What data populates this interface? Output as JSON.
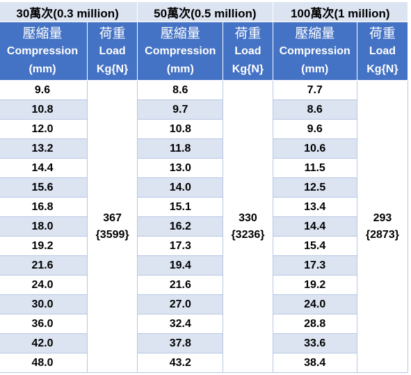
{
  "groups": [
    {
      "title": "30萬次(0.3 million)",
      "load": "367",
      "load_n": "{3599}",
      "values": [
        "9.6",
        "10.8",
        "12.0",
        "13.2",
        "14.4",
        "15.6",
        "16.8",
        "18.0",
        "19.2",
        "21.6",
        "24.0",
        "30.0",
        "36.0",
        "42.0",
        "48.0"
      ]
    },
    {
      "title": "50萬次(0.5 million)",
      "load": "330",
      "load_n": "{3236}",
      "values": [
        "8.6",
        "9.7",
        "10.8",
        "11.8",
        "13.0",
        "14.0",
        "15.1",
        "16.2",
        "17.3",
        "19.4",
        "21.6",
        "27.0",
        "32.4",
        "37.8",
        "43.2"
      ]
    },
    {
      "title": "100萬次(1 million)",
      "load": "293",
      "load_n": "{2873}",
      "values": [
        "7.7",
        "8.6",
        "9.6",
        "10.6",
        "11.5",
        "12.5",
        "13.4",
        "14.4",
        "15.4",
        "17.3",
        "19.2",
        "24.0",
        "28.8",
        "33.6",
        "38.4"
      ]
    }
  ],
  "headers": {
    "compression_cn": "壓縮量",
    "compression_en": "Compression",
    "compression_unit": "(mm)",
    "load_cn": "荷重",
    "load_en": "Load",
    "load_unit": "Kg{N}"
  },
  "colors": {
    "header_blue": "#4472c4",
    "band_light": "#dce4f2"
  }
}
